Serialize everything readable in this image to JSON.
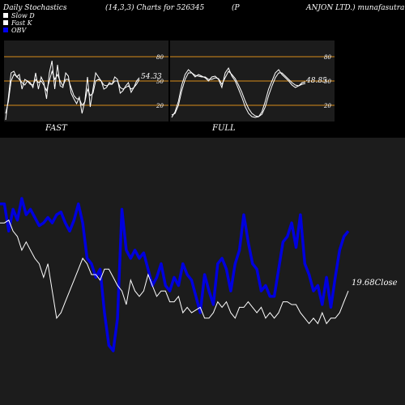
{
  "header": {
    "left": "Daily Stochastics",
    "params": "(14,3,3) Charts for 526345",
    "name_start": "(P",
    "name_end": "ANJON LTD.) munafasutra.in"
  },
  "legend": [
    {
      "label": "Slow D",
      "swatch": "#ffffff"
    },
    {
      "label": "Fast K",
      "swatch": "#ffffff"
    },
    {
      "label": "OBV",
      "swatch": "#0000ee"
    }
  ],
  "colors": {
    "background": "#000000",
    "panel": "#1c1c1c",
    "band": "#d98c1a",
    "obv": "#0000dd",
    "price": "#ffffff"
  },
  "chart_data": [
    {
      "type": "line",
      "panel_label": "FAST",
      "ylim": [
        0,
        100
      ],
      "levels": [
        20,
        50,
        80
      ],
      "tick_labels": [
        "80",
        "50",
        "20"
      ],
      "last_value_label": "54.33",
      "series": [
        {
          "values": [
            2,
            30,
            60,
            62,
            55,
            58,
            40,
            52,
            50,
            48,
            42,
            60,
            40,
            55,
            48,
            28,
            60,
            75,
            40,
            70,
            44,
            42,
            60,
            56,
            35,
            28,
            22,
            30,
            10,
            25,
            55,
            18,
            40,
            60,
            55,
            50,
            40,
            42,
            48,
            46,
            55,
            52,
            35,
            38,
            44,
            48,
            36,
            42,
            50,
            54
          ]
        },
        {
          "values": [
            10,
            25,
            50,
            58,
            56,
            52,
            48,
            45,
            50,
            46,
            45,
            52,
            48,
            50,
            45,
            38,
            50,
            62,
            52,
            58,
            50,
            44,
            52,
            52,
            42,
            32,
            28,
            28,
            20,
            24,
            40,
            32,
            35,
            50,
            52,
            50,
            45,
            44,
            46,
            46,
            50,
            50,
            42,
            40,
            42,
            44,
            40,
            42,
            46,
            52
          ]
        }
      ]
    },
    {
      "type": "line",
      "panel_label": "FULL",
      "ylim": [
        0,
        100
      ],
      "levels": [
        20,
        50,
        80
      ],
      "tick_labels": [
        "80",
        "50",
        "20"
      ],
      "last_value_label": "48.85",
      "series": [
        {
          "values": [
            5,
            12,
            25,
            45,
            58,
            64,
            60,
            55,
            58,
            56,
            54,
            50,
            55,
            56,
            52,
            42,
            60,
            66,
            56,
            50,
            40,
            30,
            18,
            10,
            6,
            5,
            6,
            12,
            25,
            40,
            50,
            60,
            64,
            58,
            54,
            50,
            45,
            42,
            44,
            48,
            49
          ]
        },
        {
          "values": [
            8,
            10,
            20,
            38,
            52,
            60,
            60,
            57,
            56,
            55,
            55,
            52,
            52,
            54,
            53,
            46,
            54,
            62,
            58,
            53,
            45,
            36,
            25,
            16,
            10,
            7,
            6,
            9,
            18,
            32,
            44,
            54,
            60,
            60,
            56,
            52,
            48,
            45,
            44,
            46,
            47
          ]
        }
      ]
    },
    {
      "type": "line",
      "price_label": "19.68",
      "price_label_suffix": "Close",
      "series": [
        {
          "values": [
            62,
            62,
            52,
            60,
            56,
            64,
            58,
            60,
            57,
            54,
            55,
            57,
            55,
            58,
            59,
            55,
            52,
            56,
            62,
            55,
            42,
            40,
            35,
            38,
            22,
            10,
            8,
            20,
            60,
            45,
            42,
            45,
            42,
            44,
            38,
            32,
            35,
            40,
            32,
            30,
            35,
            32,
            40,
            36,
            34,
            28,
            22,
            36,
            30,
            25,
            40,
            42,
            38,
            30,
            40,
            45,
            58,
            48,
            40,
            38,
            30,
            32,
            28,
            28,
            38,
            48,
            50,
            55,
            46,
            58,
            40,
            36,
            30,
            32,
            25,
            35,
            24,
            35,
            45,
            50,
            52
          ]
        },
        {
          "values": [
            55,
            55,
            56,
            52,
            50,
            45,
            48,
            45,
            42,
            40,
            35,
            40,
            30,
            20,
            22,
            26,
            30,
            34,
            38,
            42,
            40,
            36,
            36,
            34,
            38,
            38,
            35,
            32,
            30,
            25,
            34,
            30,
            28,
            30,
            36,
            32,
            28,
            30,
            30,
            26,
            26,
            28,
            22,
            24,
            22,
            23,
            24,
            20,
            20,
            22,
            26,
            24,
            26,
            22,
            20,
            24,
            24,
            26,
            24,
            22,
            24,
            20,
            22,
            20,
            22,
            26,
            26,
            25,
            25,
            22,
            20,
            18,
            20,
            18,
            22,
            18,
            20,
            20,
            22,
            26,
            30
          ]
        }
      ]
    }
  ]
}
